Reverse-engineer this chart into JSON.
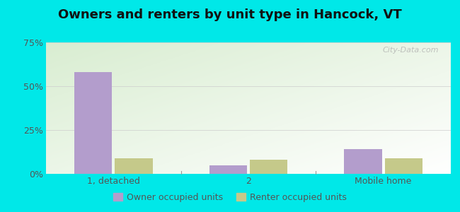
{
  "title": "Owners and renters by unit type in Hancock, VT",
  "categories": [
    "1, detached",
    "2",
    "Mobile home"
  ],
  "owner_values": [
    58.0,
    5.0,
    14.0
  ],
  "renter_values": [
    9.0,
    8.0,
    9.0
  ],
  "owner_color": "#b39dcc",
  "renter_color": "#c5c98a",
  "bar_width": 0.28,
  "ylim": [
    0,
    75
  ],
  "yticks": [
    0,
    25,
    50,
    75
  ],
  "ytick_labels": [
    "0%",
    "25%",
    "50%",
    "75%"
  ],
  "bg_color_topleft": "#d6e8c8",
  "bg_color_bottomright": "#ffffff",
  "outer_bg": "#00e8e8",
  "grid_color": "#cccccc",
  "watermark": "City-Data.com",
  "legend_labels": [
    "Owner occupied units",
    "Renter occupied units"
  ],
  "title_fontsize": 13,
  "tick_fontsize": 9,
  "legend_fontsize": 9
}
